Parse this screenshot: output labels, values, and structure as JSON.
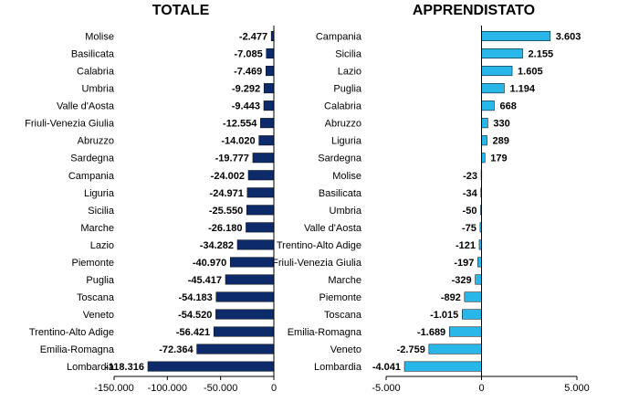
{
  "chart_data": [
    {
      "type": "bar",
      "orientation": "horizontal",
      "title": "TOTALE",
      "color": "#0d2a6b",
      "xlim": [
        -150000,
        0
      ],
      "ticks": [
        {
          "v": -150000,
          "label": "-150.000"
        },
        {
          "v": -100000,
          "label": "-100.000"
        },
        {
          "v": -50000,
          "label": "-50.000"
        },
        {
          "v": 0,
          "label": "0"
        }
      ],
      "categories": [
        "Molise",
        "Basilicata",
        "Calabria",
        "Umbria",
        "Valle d'Aosta",
        "Friuli-Venezia Giulia",
        "Abruzzo",
        "Sardegna",
        "Campania",
        "Liguria",
        "Sicilia",
        "Marche",
        "Lazio",
        "Piemonte",
        "Puglia",
        "Toscana",
        "Veneto",
        "Trentino-Alto Adige",
        "Emilia-Romagna",
        "Lombardia"
      ],
      "values": [
        -2477,
        -7085,
        -7469,
        -9292,
        -9443,
        -12554,
        -14020,
        -19777,
        -24002,
        -24971,
        -25550,
        -26180,
        -34282,
        -40970,
        -45417,
        -54183,
        -54520,
        -56421,
        -72364,
        -118316
      ],
      "value_labels": [
        "-2.477",
        "-7.085",
        "-7.469",
        "-9.292",
        "-9.443",
        "-12.554",
        "-14.020",
        "-19.777",
        "-24.002",
        "-24.971",
        "-25.550",
        "-26.180",
        "-34.282",
        "-40.970",
        "-45.417",
        "-54.183",
        "-54.520",
        "-56.421",
        "-72.364",
        "-118.316"
      ]
    },
    {
      "type": "bar",
      "orientation": "horizontal",
      "title": "APPRENDISTATO",
      "color": "#29b6e8",
      "xlim": [
        -5000,
        5000
      ],
      "ticks": [
        {
          "v": -5000,
          "label": "-5.000"
        },
        {
          "v": 0,
          "label": "0"
        },
        {
          "v": 5000,
          "label": "5.000"
        }
      ],
      "categories": [
        "Campania",
        "Sicilia",
        "Lazio",
        "Puglia",
        "Calabria",
        "Abruzzo",
        "Liguria",
        "Sardegna",
        "Molise",
        "Basilicata",
        "Umbria",
        "Valle d'Aosta",
        "Trentino-Alto Adige",
        "Friuli-Venezia Giulia",
        "Marche",
        "Piemonte",
        "Toscana",
        "Emilia-Romagna",
        "Veneto",
        "Lombardia"
      ],
      "values": [
        3603,
        2155,
        1605,
        1194,
        668,
        330,
        289,
        179,
        -23,
        -34,
        -50,
        -75,
        -121,
        -197,
        -329,
        -892,
        -1015,
        -1689,
        -2759,
        -4041
      ],
      "value_labels": [
        "3.603",
        "2.155",
        "1.605",
        "1.194",
        "668",
        "330",
        "289",
        "179",
        "-23",
        "-34",
        "-50",
        "-75",
        "-121",
        "-197",
        "-329",
        "-892",
        "-1.015",
        "-1.689",
        "-2.759",
        "-4.041"
      ]
    }
  ]
}
